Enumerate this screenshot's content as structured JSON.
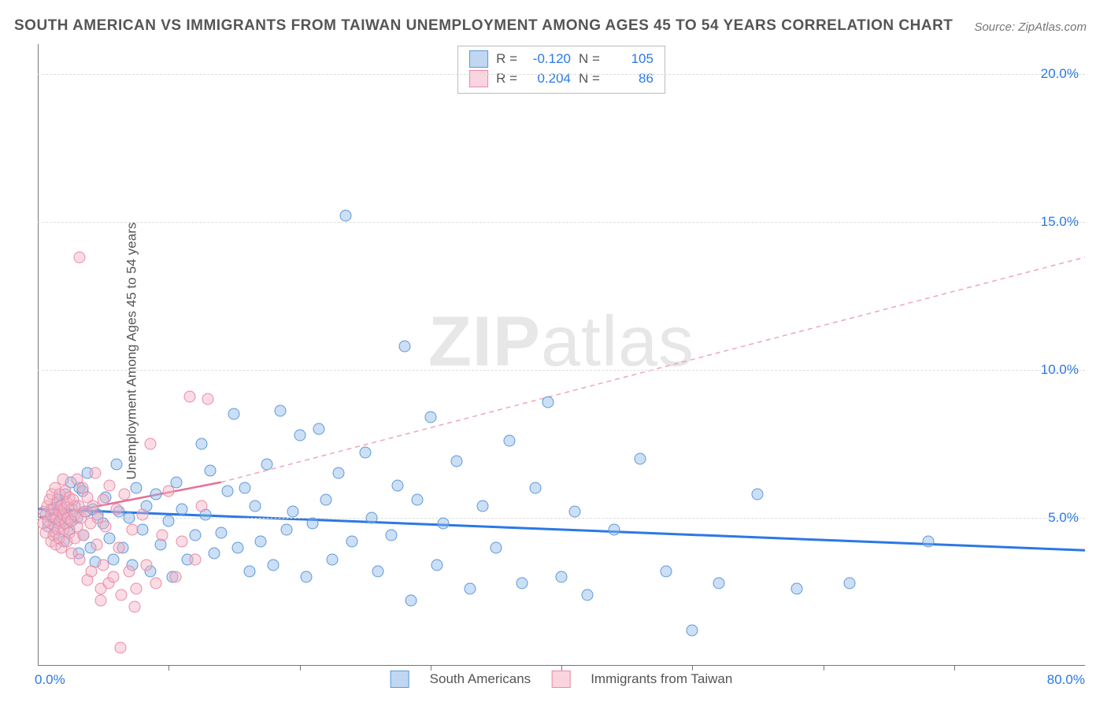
{
  "title": "SOUTH AMERICAN VS IMMIGRANTS FROM TAIWAN UNEMPLOYMENT AMONG AGES 45 TO 54 YEARS CORRELATION CHART",
  "source": "Source: ZipAtlas.com",
  "y_axis_label": "Unemployment Among Ages 45 to 54 years",
  "watermark_a": "ZIP",
  "watermark_b": "atlas",
  "chart": {
    "type": "scatter",
    "xlim": [
      0,
      80
    ],
    "ylim": [
      0,
      21
    ],
    "x_tick_positions": [
      0,
      10,
      20,
      30,
      40,
      50,
      60,
      70
    ],
    "x_origin_label": "0.0%",
    "x_max_label": "80.0%",
    "y_ticks": [
      {
        "v": 5,
        "label": "5.0%"
      },
      {
        "v": 10,
        "label": "10.0%"
      },
      {
        "v": 15,
        "label": "15.0%"
      },
      {
        "v": 20,
        "label": "20.0%"
      }
    ],
    "grid_color": "#dddddd",
    "axis_color": "#777777",
    "background_color": "#ffffff",
    "series": [
      {
        "name": "South Americans",
        "color_fill": "rgba(141,183,232,0.45)",
        "color_stroke": "#5d99d9",
        "marker_class": "blue",
        "R_label": "R =",
        "R": "-0.120",
        "N_label": "N =",
        "N": "105",
        "trend": {
          "x1": 0,
          "y1": 5.3,
          "x2": 80,
          "y2": 3.9,
          "stroke": "#2b78e4",
          "width": 3,
          "dash": ""
        },
        "points": [
          [
            0.6,
            5.1
          ],
          [
            0.8,
            4.7
          ],
          [
            1.0,
            5.3
          ],
          [
            1.2,
            5.0
          ],
          [
            1.3,
            4.5
          ],
          [
            1.5,
            5.6
          ],
          [
            1.6,
            4.8
          ],
          [
            1.7,
            5.4
          ],
          [
            1.8,
            5.0
          ],
          [
            2.0,
            4.2
          ],
          [
            2.1,
            5.8
          ],
          [
            2.2,
            5.1
          ],
          [
            2.4,
            4.6
          ],
          [
            2.5,
            6.2
          ],
          [
            2.6,
            4.9
          ],
          [
            2.8,
            5.4
          ],
          [
            3.0,
            5.0
          ],
          [
            3.1,
            3.8
          ],
          [
            3.2,
            6.0
          ],
          [
            3.4,
            5.9
          ],
          [
            3.5,
            4.4
          ],
          [
            3.7,
            5.2
          ],
          [
            3.8,
            6.5
          ],
          [
            4.0,
            4.0
          ],
          [
            4.2,
            5.3
          ],
          [
            4.4,
            3.5
          ],
          [
            4.6,
            5.1
          ],
          [
            5.0,
            4.8
          ],
          [
            5.2,
            5.7
          ],
          [
            5.5,
            4.3
          ],
          [
            5.8,
            3.6
          ],
          [
            6.0,
            6.8
          ],
          [
            6.2,
            5.2
          ],
          [
            6.5,
            4.0
          ],
          [
            7.0,
            5.0
          ],
          [
            7.2,
            3.4
          ],
          [
            7.5,
            6.0
          ],
          [
            8.0,
            4.6
          ],
          [
            8.3,
            5.4
          ],
          [
            8.6,
            3.2
          ],
          [
            9.0,
            5.8
          ],
          [
            9.4,
            4.1
          ],
          [
            10.0,
            4.9
          ],
          [
            10.3,
            3.0
          ],
          [
            10.6,
            6.2
          ],
          [
            11.0,
            5.3
          ],
          [
            11.4,
            3.6
          ],
          [
            12.0,
            4.4
          ],
          [
            12.5,
            7.5
          ],
          [
            12.8,
            5.1
          ],
          [
            13.2,
            6.6
          ],
          [
            13.5,
            3.8
          ],
          [
            14.0,
            4.5
          ],
          [
            14.5,
            5.9
          ],
          [
            15.0,
            8.5
          ],
          [
            15.3,
            4.0
          ],
          [
            15.8,
            6.0
          ],
          [
            16.2,
            3.2
          ],
          [
            16.6,
            5.4
          ],
          [
            17.0,
            4.2
          ],
          [
            17.5,
            6.8
          ],
          [
            18.0,
            3.4
          ],
          [
            18.5,
            8.6
          ],
          [
            19.0,
            4.6
          ],
          [
            19.5,
            5.2
          ],
          [
            20.0,
            7.8
          ],
          [
            20.5,
            3.0
          ],
          [
            21.0,
            4.8
          ],
          [
            21.5,
            8.0
          ],
          [
            22.0,
            5.6
          ],
          [
            22.5,
            3.6
          ],
          [
            23.0,
            6.5
          ],
          [
            23.5,
            15.2
          ],
          [
            24.0,
            4.2
          ],
          [
            25.0,
            7.2
          ],
          [
            25.5,
            5.0
          ],
          [
            26.0,
            3.2
          ],
          [
            27.0,
            4.4
          ],
          [
            27.5,
            6.1
          ],
          [
            28.0,
            10.8
          ],
          [
            28.5,
            2.2
          ],
          [
            29.0,
            5.6
          ],
          [
            30.0,
            8.4
          ],
          [
            30.5,
            3.4
          ],
          [
            31.0,
            4.8
          ],
          [
            32.0,
            6.9
          ],
          [
            33.0,
            2.6
          ],
          [
            34.0,
            5.4
          ],
          [
            35.0,
            4.0
          ],
          [
            36.0,
            7.6
          ],
          [
            37.0,
            2.8
          ],
          [
            38.0,
            6.0
          ],
          [
            39.0,
            8.9
          ],
          [
            40.0,
            3.0
          ],
          [
            41.0,
            5.2
          ],
          [
            42.0,
            2.4
          ],
          [
            44.0,
            4.6
          ],
          [
            46.0,
            7.0
          ],
          [
            48.0,
            3.2
          ],
          [
            50.0,
            1.2
          ],
          [
            52.0,
            2.8
          ],
          [
            55.0,
            5.8
          ],
          [
            58.0,
            2.6
          ],
          [
            62.0,
            2.8
          ],
          [
            68.0,
            4.2
          ]
        ]
      },
      {
        "name": "Immigrants from Taiwan",
        "color_fill": "rgba(246,178,196,0.45)",
        "color_stroke": "#e88ba6",
        "marker_class": "pink",
        "R_label": "R =",
        "R": "0.204",
        "N_label": "N =",
        "N": "86",
        "trend_solid": {
          "x1": 0,
          "y1": 5.0,
          "x2": 14,
          "y2": 6.2,
          "stroke": "#e86f93",
          "width": 2.5,
          "dash": ""
        },
        "trend_dash": {
          "x1": 14,
          "y1": 6.2,
          "x2": 80,
          "y2": 13.8,
          "stroke": "#f0a5ba",
          "width": 1.5,
          "dash": "6 5"
        },
        "points": [
          [
            0.4,
            4.8
          ],
          [
            0.5,
            5.2
          ],
          [
            0.6,
            4.5
          ],
          [
            0.7,
            5.4
          ],
          [
            0.8,
            4.9
          ],
          [
            0.9,
            5.6
          ],
          [
            1.0,
            4.2
          ],
          [
            1.0,
            5.1
          ],
          [
            1.1,
            5.8
          ],
          [
            1.2,
            4.4
          ],
          [
            1.2,
            5.3
          ],
          [
            1.3,
            4.7
          ],
          [
            1.3,
            6.0
          ],
          [
            1.4,
            5.0
          ],
          [
            1.4,
            4.1
          ],
          [
            1.5,
            5.5
          ],
          [
            1.5,
            4.6
          ],
          [
            1.6,
            5.2
          ],
          [
            1.6,
            4.3
          ],
          [
            1.7,
            5.8
          ],
          [
            1.7,
            4.9
          ],
          [
            1.8,
            5.4
          ],
          [
            1.8,
            4.0
          ],
          [
            1.9,
            5.1
          ],
          [
            1.9,
            6.3
          ],
          [
            2.0,
            4.6
          ],
          [
            2.0,
            5.3
          ],
          [
            2.1,
            4.8
          ],
          [
            2.1,
            5.9
          ],
          [
            2.2,
            4.2
          ],
          [
            2.2,
            5.5
          ],
          [
            2.3,
            5.0
          ],
          [
            2.4,
            4.5
          ],
          [
            2.4,
            5.7
          ],
          [
            2.5,
            4.9
          ],
          [
            2.6,
            5.3
          ],
          [
            2.6,
            3.8
          ],
          [
            2.7,
            5.6
          ],
          [
            2.8,
            4.3
          ],
          [
            2.8,
            5.1
          ],
          [
            3.0,
            6.3
          ],
          [
            3.0,
            4.7
          ],
          [
            3.1,
            5.4
          ],
          [
            3.2,
            3.6
          ],
          [
            3.3,
            5.0
          ],
          [
            3.4,
            6.0
          ],
          [
            3.5,
            4.4
          ],
          [
            3.6,
            5.2
          ],
          [
            3.8,
            2.9
          ],
          [
            3.8,
            5.7
          ],
          [
            4.0,
            4.8
          ],
          [
            4.1,
            3.2
          ],
          [
            4.2,
            5.4
          ],
          [
            4.4,
            6.5
          ],
          [
            4.5,
            4.1
          ],
          [
            4.6,
            5.0
          ],
          [
            4.8,
            2.6
          ],
          [
            5.0,
            5.6
          ],
          [
            5.0,
            3.4
          ],
          [
            5.2,
            4.7
          ],
          [
            5.4,
            2.8
          ],
          [
            5.5,
            6.1
          ],
          [
            5.8,
            3.0
          ],
          [
            6.0,
            5.3
          ],
          [
            6.2,
            4.0
          ],
          [
            6.4,
            2.4
          ],
          [
            6.6,
            5.8
          ],
          [
            7.0,
            3.2
          ],
          [
            7.2,
            4.6
          ],
          [
            7.5,
            2.6
          ],
          [
            8.0,
            5.1
          ],
          [
            8.3,
            3.4
          ],
          [
            8.6,
            7.5
          ],
          [
            9.0,
            2.8
          ],
          [
            9.5,
            4.4
          ],
          [
            10.0,
            5.9
          ],
          [
            10.5,
            3.0
          ],
          [
            11.0,
            4.2
          ],
          [
            11.6,
            9.1
          ],
          [
            12.0,
            3.6
          ],
          [
            12.5,
            5.4
          ],
          [
            13.0,
            9.0
          ],
          [
            3.2,
            13.8
          ],
          [
            4.8,
            2.2
          ],
          [
            6.3,
            0.6
          ],
          [
            7.4,
            2.0
          ]
        ]
      }
    ],
    "bottom_legend": [
      {
        "swatch": "blue",
        "label": "South Americans"
      },
      {
        "swatch": "pink",
        "label": "Immigrants from Taiwan"
      }
    ]
  }
}
